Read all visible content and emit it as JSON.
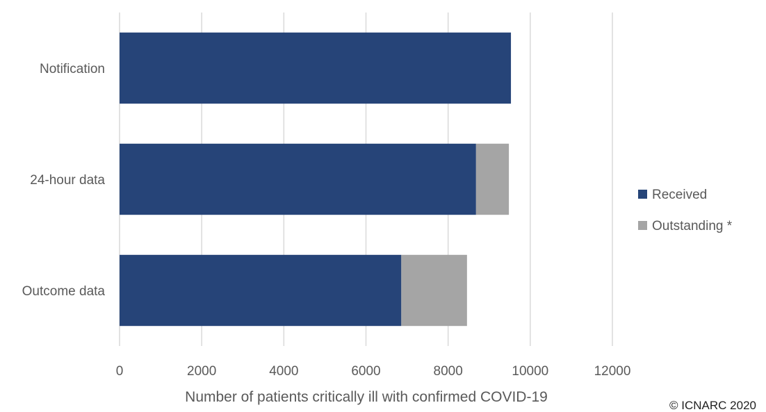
{
  "chart_data": {
    "type": "bar",
    "orientation": "horizontal",
    "stacked": true,
    "categories": [
      "Notification",
      "24-hour data",
      "Outcome data"
    ],
    "series": [
      {
        "name": "Received",
        "values": [
          9530,
          8680,
          6860
        ],
        "color": "#264478"
      },
      {
        "name": "Outstanding *",
        "values": [
          0,
          800,
          1600
        ],
        "color": "#A5A5A5"
      }
    ],
    "xlabel": "Number of patients critically ill with confirmed COVID-19",
    "xlim": [
      0,
      12000
    ],
    "xticks": [
      0,
      2000,
      4000,
      6000,
      8000,
      10000,
      12000
    ],
    "grid": true,
    "legend_position": "right"
  },
  "footer": {
    "copyright": "© ICNARC 2020"
  }
}
